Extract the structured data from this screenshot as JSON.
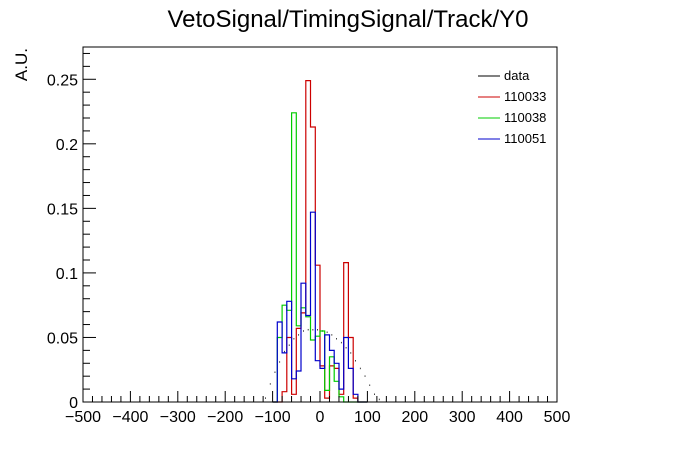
{
  "chart_data": {
    "type": "histogram",
    "title": "VetoSignal/TimingSignal/Track/Y0",
    "xlabel": "",
    "ylabel": "A.U.",
    "xlim": [
      -500,
      500
    ],
    "ylim": [
      0,
      0.275
    ],
    "bin_width": 10,
    "x_ticks": [
      -500,
      -400,
      -300,
      -200,
      -100,
      0,
      100,
      200,
      300,
      400,
      500
    ],
    "x_tick_labels": [
      "−500",
      "−400",
      "−300",
      "−200",
      "−100",
      "0",
      "100",
      "200",
      "300",
      "400",
      "500"
    ],
    "y_ticks": [
      0,
      0.05,
      0.1,
      0.15,
      0.2,
      0.25
    ],
    "y_tick_labels": [
      "0",
      "0.05",
      "0.1",
      "0.15",
      "0.2",
      "0.25"
    ],
    "grid": false,
    "legend_position": "top-right",
    "series": [
      {
        "name": "data",
        "color": "#000000",
        "style": "markers",
        "x": [
          -500,
          -490,
          -480,
          -470,
          -460,
          -450,
          -440,
          -430,
          -420,
          -410,
          -400,
          -390,
          -380,
          -370,
          -360,
          -350,
          -340,
          -330,
          -320,
          -310,
          -300,
          -290,
          -280,
          -270,
          -260,
          -250,
          -240,
          -230,
          -220,
          -210,
          -200,
          -190,
          -180,
          -170,
          -160,
          -150,
          -140,
          -130,
          -120,
          -110,
          -100,
          -90,
          -80,
          -70,
          -60,
          -50,
          -40,
          -30,
          -20,
          -10,
          0,
          10,
          20,
          30,
          40,
          50,
          60,
          70,
          80,
          90,
          100,
          110,
          120,
          130,
          140,
          150,
          160,
          170,
          180,
          190,
          200,
          210,
          220,
          230,
          240,
          250,
          260,
          270,
          280,
          290,
          300,
          310,
          320,
          330,
          340,
          350,
          360,
          370,
          380,
          390,
          400,
          410,
          420,
          430,
          440,
          450,
          460,
          470,
          480,
          490
        ],
        "values": [
          0,
          0,
          0,
          0,
          0,
          0,
          0,
          0,
          0,
          0,
          0,
          0,
          0,
          0,
          0,
          0,
          0,
          0,
          0,
          0,
          0,
          0,
          0,
          0,
          0,
          0,
          0,
          0,
          0,
          0,
          0,
          0,
          0,
          0,
          0,
          0,
          0,
          0,
          0.003,
          0.014,
          0.023,
          0.031,
          0.039,
          0.044,
          0.049,
          0.052,
          0.055,
          0.056,
          0.056,
          0.056,
          0.055,
          0.054,
          0.052,
          0.049,
          0.046,
          0.042,
          0.038,
          0.032,
          0.026,
          0.02,
          0.013,
          0.006,
          0.002,
          0,
          0,
          0,
          0,
          0,
          0,
          0,
          0,
          0,
          0,
          0,
          0,
          0,
          0,
          0,
          0,
          0,
          0,
          0,
          0,
          0,
          0,
          0,
          0,
          0,
          0,
          0,
          0,
          0,
          0,
          0,
          0,
          0,
          0,
          0,
          0,
          0
        ]
      },
      {
        "name": "110033",
        "color": "#cc0000",
        "style": "step",
        "x": [
          -100,
          -90,
          -80,
          -70,
          -60,
          -50,
          -40,
          -30,
          -20,
          -10,
          0,
          10,
          20,
          30,
          40,
          50,
          60,
          70,
          80,
          90
        ],
        "values": [
          0,
          0,
          0.008,
          0.05,
          0.006,
          0.057,
          0.069,
          0.249,
          0.213,
          0.106,
          0.028,
          0.003,
          0.028,
          0.026,
          0.006,
          0.108,
          0.05,
          0.003,
          0,
          0
        ]
      },
      {
        "name": "110038",
        "color": "#00cc00",
        "style": "step",
        "x": [
          -100,
          -90,
          -80,
          -70,
          -60,
          -50,
          -40,
          -30,
          -20,
          -10,
          0,
          10,
          20,
          30,
          40,
          50,
          60,
          70,
          80,
          90
        ],
        "values": [
          0,
          0.05,
          0.075,
          0.071,
          0.224,
          0.059,
          0.073,
          0.066,
          0.048,
          0.051,
          0.055,
          0.009,
          0.035,
          0.016,
          0.004,
          0,
          0,
          0,
          0,
          0
        ]
      },
      {
        "name": "110051",
        "color": "#0000cc",
        "style": "step",
        "x": [
          -100,
          -90,
          -80,
          -70,
          -60,
          -50,
          -40,
          -30,
          -20,
          -10,
          0,
          10,
          20,
          30,
          40,
          50,
          60,
          70,
          80,
          90
        ],
        "values": [
          0,
          0.062,
          0.038,
          0.078,
          0.018,
          0.024,
          0.092,
          0.067,
          0.147,
          0.032,
          0.026,
          0.052,
          0.04,
          0.03,
          0.01,
          0.05,
          0.026,
          0.006,
          0,
          0
        ]
      }
    ]
  }
}
